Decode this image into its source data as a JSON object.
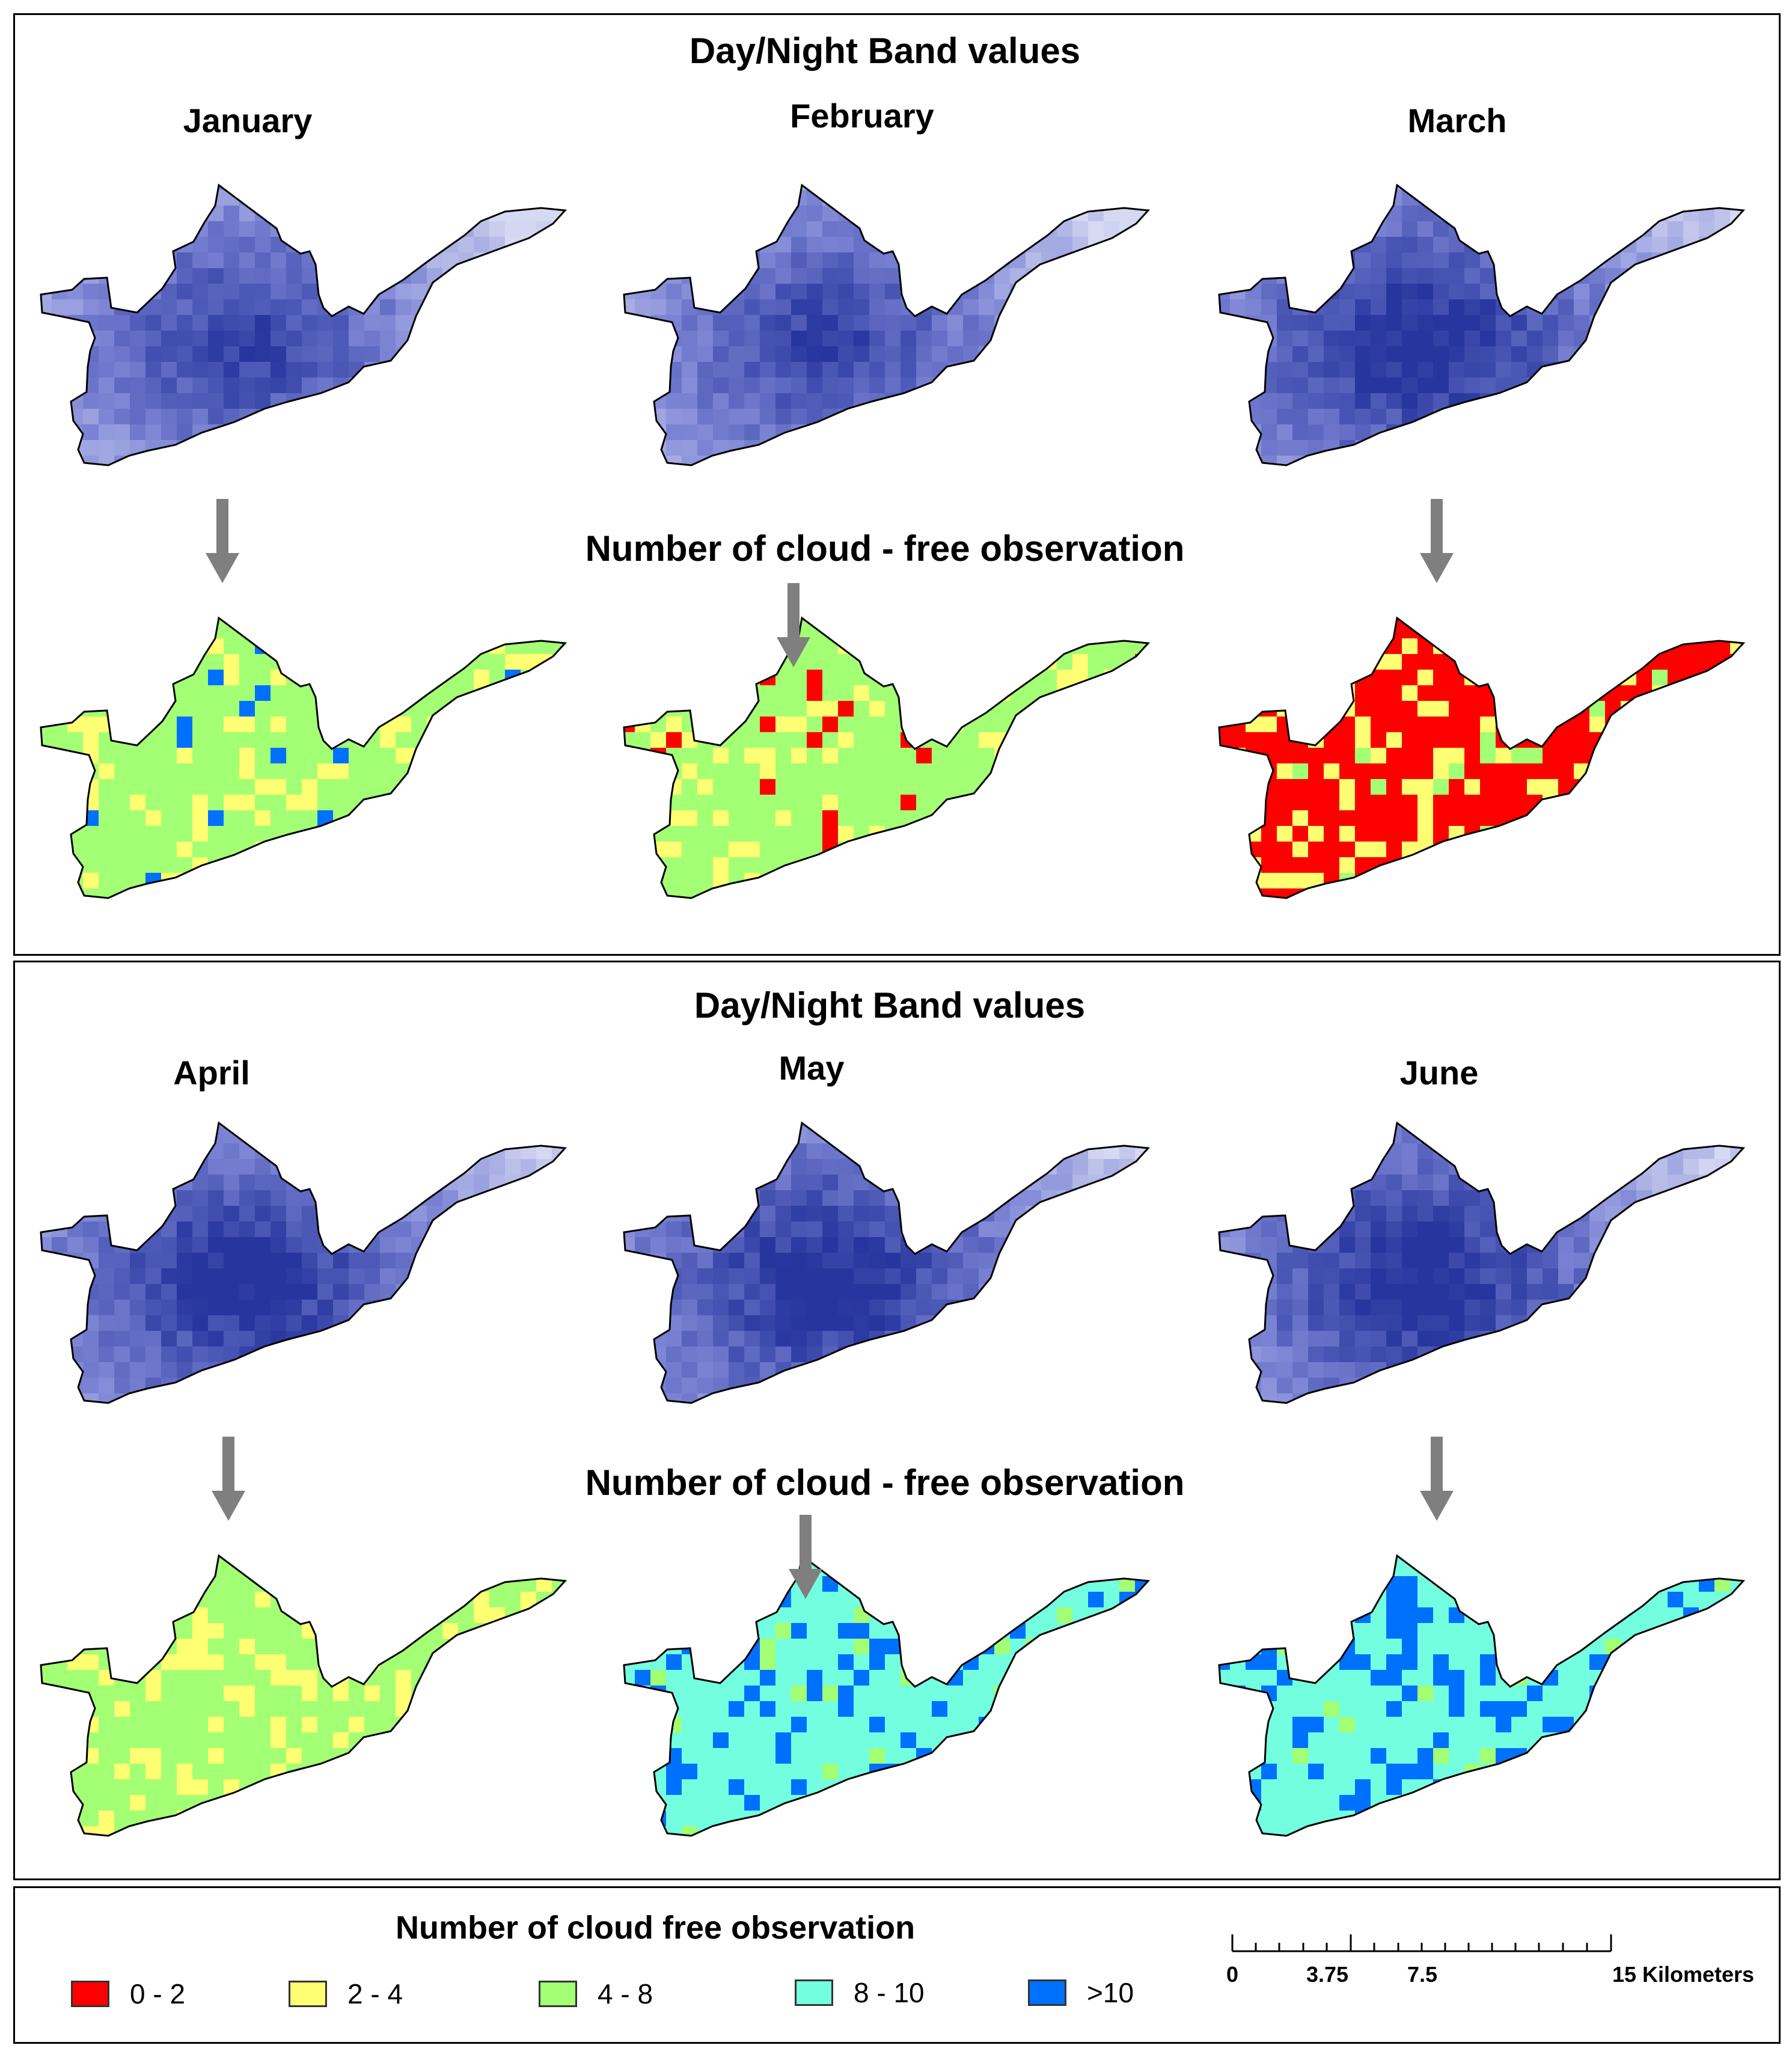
{
  "panels": [
    {
      "dnb_title": "Day/Night Band values",
      "cloud_title": "Number of cloud - free observation",
      "months": [
        {
          "name": "January",
          "dnb_tone": "mid",
          "class_counts": {
            "main": "4-8",
            "secondary": "2-4",
            "accent": ">10"
          }
        },
        {
          "name": "February",
          "dnb_tone": "mid",
          "class_counts": {
            "main": "4-8",
            "secondary": "2-4",
            "accent": "0-2"
          }
        },
        {
          "name": "March",
          "dnb_tone": "dark",
          "class_counts": {
            "main": "0-2",
            "secondary": "2-4",
            "accent": "4-8"
          }
        }
      ]
    },
    {
      "dnb_title": "Day/Night Band values",
      "cloud_title": "Number of cloud - free observation",
      "months": [
        {
          "name": "April",
          "dnb_tone": "dark",
          "class_counts": {
            "main": "4-8",
            "secondary": "2-4",
            "accent": "2-4"
          }
        },
        {
          "name": "May",
          "dnb_tone": "dark",
          "class_counts": {
            "main": "8-10",
            "secondary": ">10",
            "accent": "4-8"
          }
        },
        {
          "name": "June",
          "dnb_tone": "dark",
          "class_counts": {
            "main": "8-10",
            "secondary": ">10",
            "accent": "4-8"
          }
        }
      ]
    }
  ],
  "legend": {
    "title": "Number of cloud free observation",
    "items": [
      {
        "label": "0 - 2",
        "color": "#ff0000"
      },
      {
        "label": "2 - 4",
        "color": "#ffff73"
      },
      {
        "label": "4 - 8",
        "color": "#a3ff73"
      },
      {
        "label": "8 - 10",
        "color": "#73ffdf"
      },
      {
        "label": ">10",
        "color": "#0070ff"
      }
    ]
  },
  "scale_bar": {
    "labels": [
      "0",
      "3.75",
      "7.5",
      "15 Kilometers"
    ],
    "values": [
      0,
      3.75,
      7.5,
      15
    ]
  },
  "colors": {
    "dnb_light": "#d6d9f2",
    "dnb_mid": "#7f87d6",
    "dnb_dark": "#27369e",
    "arrow": "#7f7f7f"
  }
}
